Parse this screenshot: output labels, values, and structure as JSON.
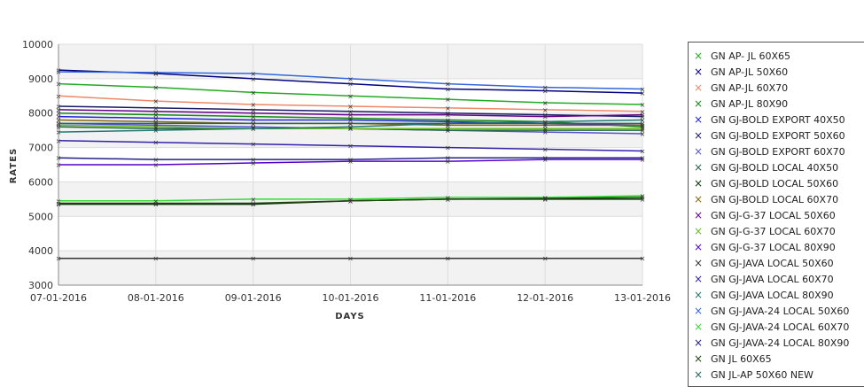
{
  "chart_data": {
    "type": "line",
    "title": "",
    "xlabel": "DAYS",
    "ylabel": "RATES",
    "x": [
      "07-01-2016",
      "08-01-2016",
      "09-01-2016",
      "10-01-2016",
      "11-01-2016",
      "12-01-2016",
      "13-01-2016"
    ],
    "ylim": [
      3000,
      10000
    ],
    "yticks": [
      3000,
      4000,
      5000,
      6000,
      7000,
      8000,
      9000,
      10000
    ],
    "grid": true,
    "legend_position": "right",
    "series": [
      {
        "name": "GN AP- JL 60X65",
        "color": "#22aa22",
        "values": [
          8850,
          8750,
          8600,
          8500,
          8400,
          8300,
          8250
        ]
      },
      {
        "name": "GN AP-JL 50X60",
        "color": "#000080",
        "values": [
          9250,
          9150,
          9000,
          8850,
          8700,
          8650,
          8580
        ]
      },
      {
        "name": "GN AP-JL 60X70",
        "color": "#ee8866",
        "values": [
          8500,
          8350,
          8250,
          8200,
          8150,
          8100,
          8050
        ]
      },
      {
        "name": "GN AP-JL 80X90",
        "color": "#118811",
        "values": [
          8000,
          7950,
          7900,
          7850,
          7800,
          7750,
          7600
        ]
      },
      {
        "name": "GN GJ-BOLD EXPORT 40X50",
        "color": "#2222dd",
        "values": [
          7900,
          7850,
          7800,
          7800,
          7750,
          7700,
          7650
        ]
      },
      {
        "name": "GN GJ-BOLD EXPORT 50X60",
        "color": "#1a1a66",
        "values": [
          8200,
          8150,
          8100,
          8050,
          8000,
          7950,
          7900
        ]
      },
      {
        "name": "GN GJ-BOLD EXPORT 60X70",
        "color": "#5555cc",
        "values": [
          7700,
          7650,
          7600,
          7550,
          7500,
          7450,
          7400
        ]
      },
      {
        "name": "GN GJ-BOLD LOCAL 40X50",
        "color": "#226644",
        "values": [
          7600,
          7550,
          7550,
          7550,
          7500,
          7500,
          7500
        ]
      },
      {
        "name": "GN GJ-BOLD LOCAL 50X60",
        "color": "#003300",
        "values": [
          5350,
          5350,
          5350,
          5450,
          5500,
          5500,
          5500
        ]
      },
      {
        "name": "GN GJ-BOLD LOCAL 60X70",
        "color": "#886611",
        "values": [
          7800,
          7750,
          7700,
          7700,
          7650,
          7650,
          7650
        ]
      },
      {
        "name": "GN GJ-G-37 LOCAL 50X60",
        "color": "#660088",
        "values": [
          8100,
          8050,
          8000,
          7950,
          7950,
          7900,
          7950
        ]
      },
      {
        "name": "GN GJ-G-37 LOCAL 60X70",
        "color": "#66bb22",
        "values": [
          7650,
          7600,
          7550,
          7550,
          7550,
          7550,
          7550
        ]
      },
      {
        "name": "GN GJ-G-37 LOCAL 80X90",
        "color": "#5500cc",
        "values": [
          6500,
          6500,
          6550,
          6600,
          6600,
          6650,
          6650
        ]
      },
      {
        "name": "GN GJ-JAVA LOCAL 50X60",
        "color": "#333333",
        "values": [
          3780,
          3780,
          3780,
          3780,
          3780,
          3780,
          3780
        ]
      },
      {
        "name": "GN GJ-JAVA LOCAL 60X70",
        "color": "#3322aa",
        "values": [
          7200,
          7150,
          7100,
          7050,
          7000,
          6950,
          6900
        ]
      },
      {
        "name": "GN GJ-JAVA LOCAL 80X90",
        "color": "#227777",
        "values": [
          7450,
          7500,
          7550,
          7600,
          7700,
          7750,
          7800
        ]
      },
      {
        "name": "GN GJ-JAVA-24 LOCAL 50X60",
        "color": "#3366dd",
        "values": [
          9200,
          9180,
          9150,
          9000,
          8850,
          8750,
          8700
        ]
      },
      {
        "name": "GN GJ-JAVA-24 LOCAL 60X70",
        "color": "#33dd33",
        "values": [
          5450,
          5450,
          5500,
          5500,
          5550,
          5550,
          5600
        ]
      },
      {
        "name": "GN GJ-JAVA-24 LOCAL 80X90",
        "color": "#222288",
        "values": [
          6700,
          6650,
          6650,
          6650,
          6700,
          6700,
          6700
        ]
      },
      {
        "name": "GN JL 60X65",
        "color": "#224411",
        "values": [
          5380,
          5380,
          5380,
          5450,
          5500,
          5520,
          5550
        ]
      },
      {
        "name": "GN JL-AP 50X60 NEW",
        "color": "#226666",
        "values": [
          7700,
          7700,
          7700,
          7700,
          7700,
          7700,
          7700
        ]
      }
    ]
  }
}
